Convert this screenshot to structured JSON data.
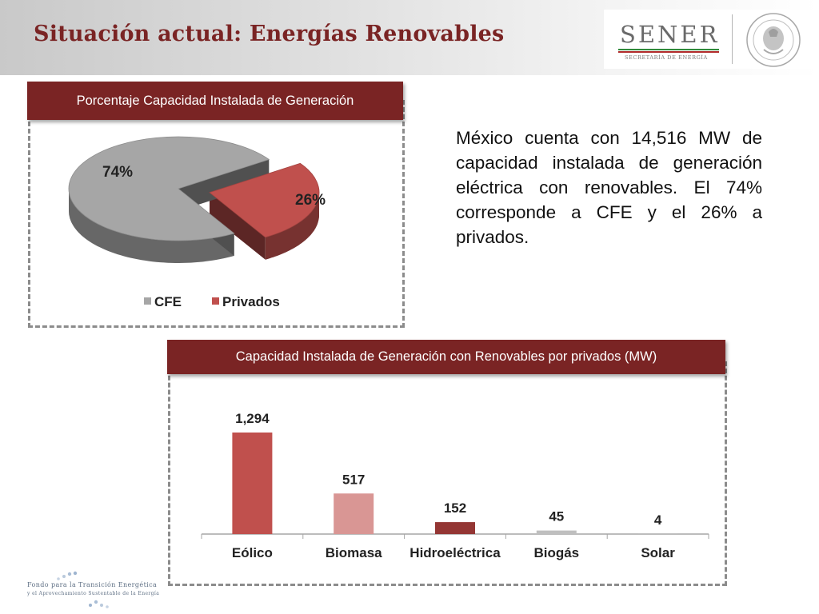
{
  "slide": {
    "title": "Situación actual: Energías Renovables",
    "description": "México cuenta con 14,516 MW de capacidad instalada de generación eléctrica con renovables.  El 74% corresponde a CFE y el 26% a privados."
  },
  "logo": {
    "name": "SENER",
    "subtitle": "SECRETARÍA DE ENERGÍA",
    "seal_name": "mexican-coat-of-arms-seal"
  },
  "footer": {
    "line1": "Fondo para la Transición Energética",
    "line2": "y el Aprovechamiento Sustentable de la Energía"
  },
  "colors": {
    "title": "#7a2424",
    "panel_header": "#7a2424",
    "cfe": "#a6a6a6",
    "privados": "#c0504d"
  },
  "chart_data": [
    {
      "type": "pie",
      "title": "Porcentaje Capacidad Instalada de Generación",
      "categories": [
        "CFE",
        "Privados"
      ],
      "values": [
        74,
        26
      ],
      "data_labels": [
        "74%",
        "26%"
      ],
      "colors": [
        "#a6a6a6",
        "#c0504d"
      ],
      "legend": {
        "placement": "bottom",
        "entries": [
          "CFE",
          "Privados"
        ]
      }
    },
    {
      "type": "bar",
      "title": "Capacidad Instalada de Generación con Renovables por privados (MW)",
      "categories": [
        "Eólico",
        "Biomasa",
        "Hidroeléctrica",
        "Biogás",
        "Solar"
      ],
      "values": [
        1294,
        517,
        152,
        45,
        4
      ],
      "data_labels": [
        "1,294",
        "517",
        "152",
        "45",
        "4"
      ],
      "colors": [
        "#c0504d",
        "#d99694",
        "#943634",
        "#bfbfbf",
        "#bfbfbf"
      ],
      "ylim": [
        0,
        1294
      ],
      "grid": false
    }
  ]
}
